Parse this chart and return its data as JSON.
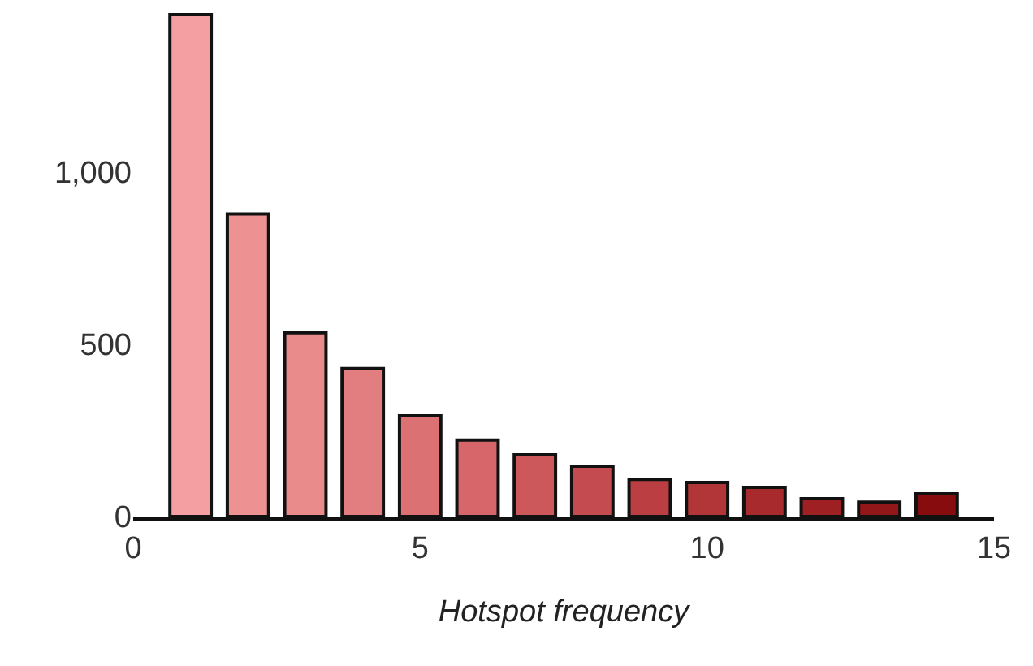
{
  "chart_data": {
    "type": "bar",
    "xlabel": "Hotspot frequency",
    "x": [
      1,
      2,
      3,
      4,
      5,
      6,
      7,
      8,
      9,
      10,
      11,
      12,
      13,
      14
    ],
    "values": [
      1455,
      877,
      533,
      429,
      292,
      222,
      179,
      146,
      108,
      99,
      85,
      52,
      42,
      66
    ],
    "colors": [
      "#f4a0a3",
      "#ee9193",
      "#e98a8b",
      "#e27e80",
      "#dc7173",
      "#d66669",
      "#cc585b",
      "#c44c50",
      "#bb3f42",
      "#b23538",
      "#a82a2c",
      "#9e2022",
      "#921719",
      "#870c0e"
    ],
    "xlim": [
      0,
      15
    ],
    "xticks": [
      0,
      5,
      10,
      15
    ],
    "ylim": [
      0,
      1460
    ],
    "yticks": [
      0,
      {
        "value": 500,
        "label": "500"
      },
      {
        "value": 1000,
        "label": "1,000"
      }
    ],
    "grid": false
  }
}
